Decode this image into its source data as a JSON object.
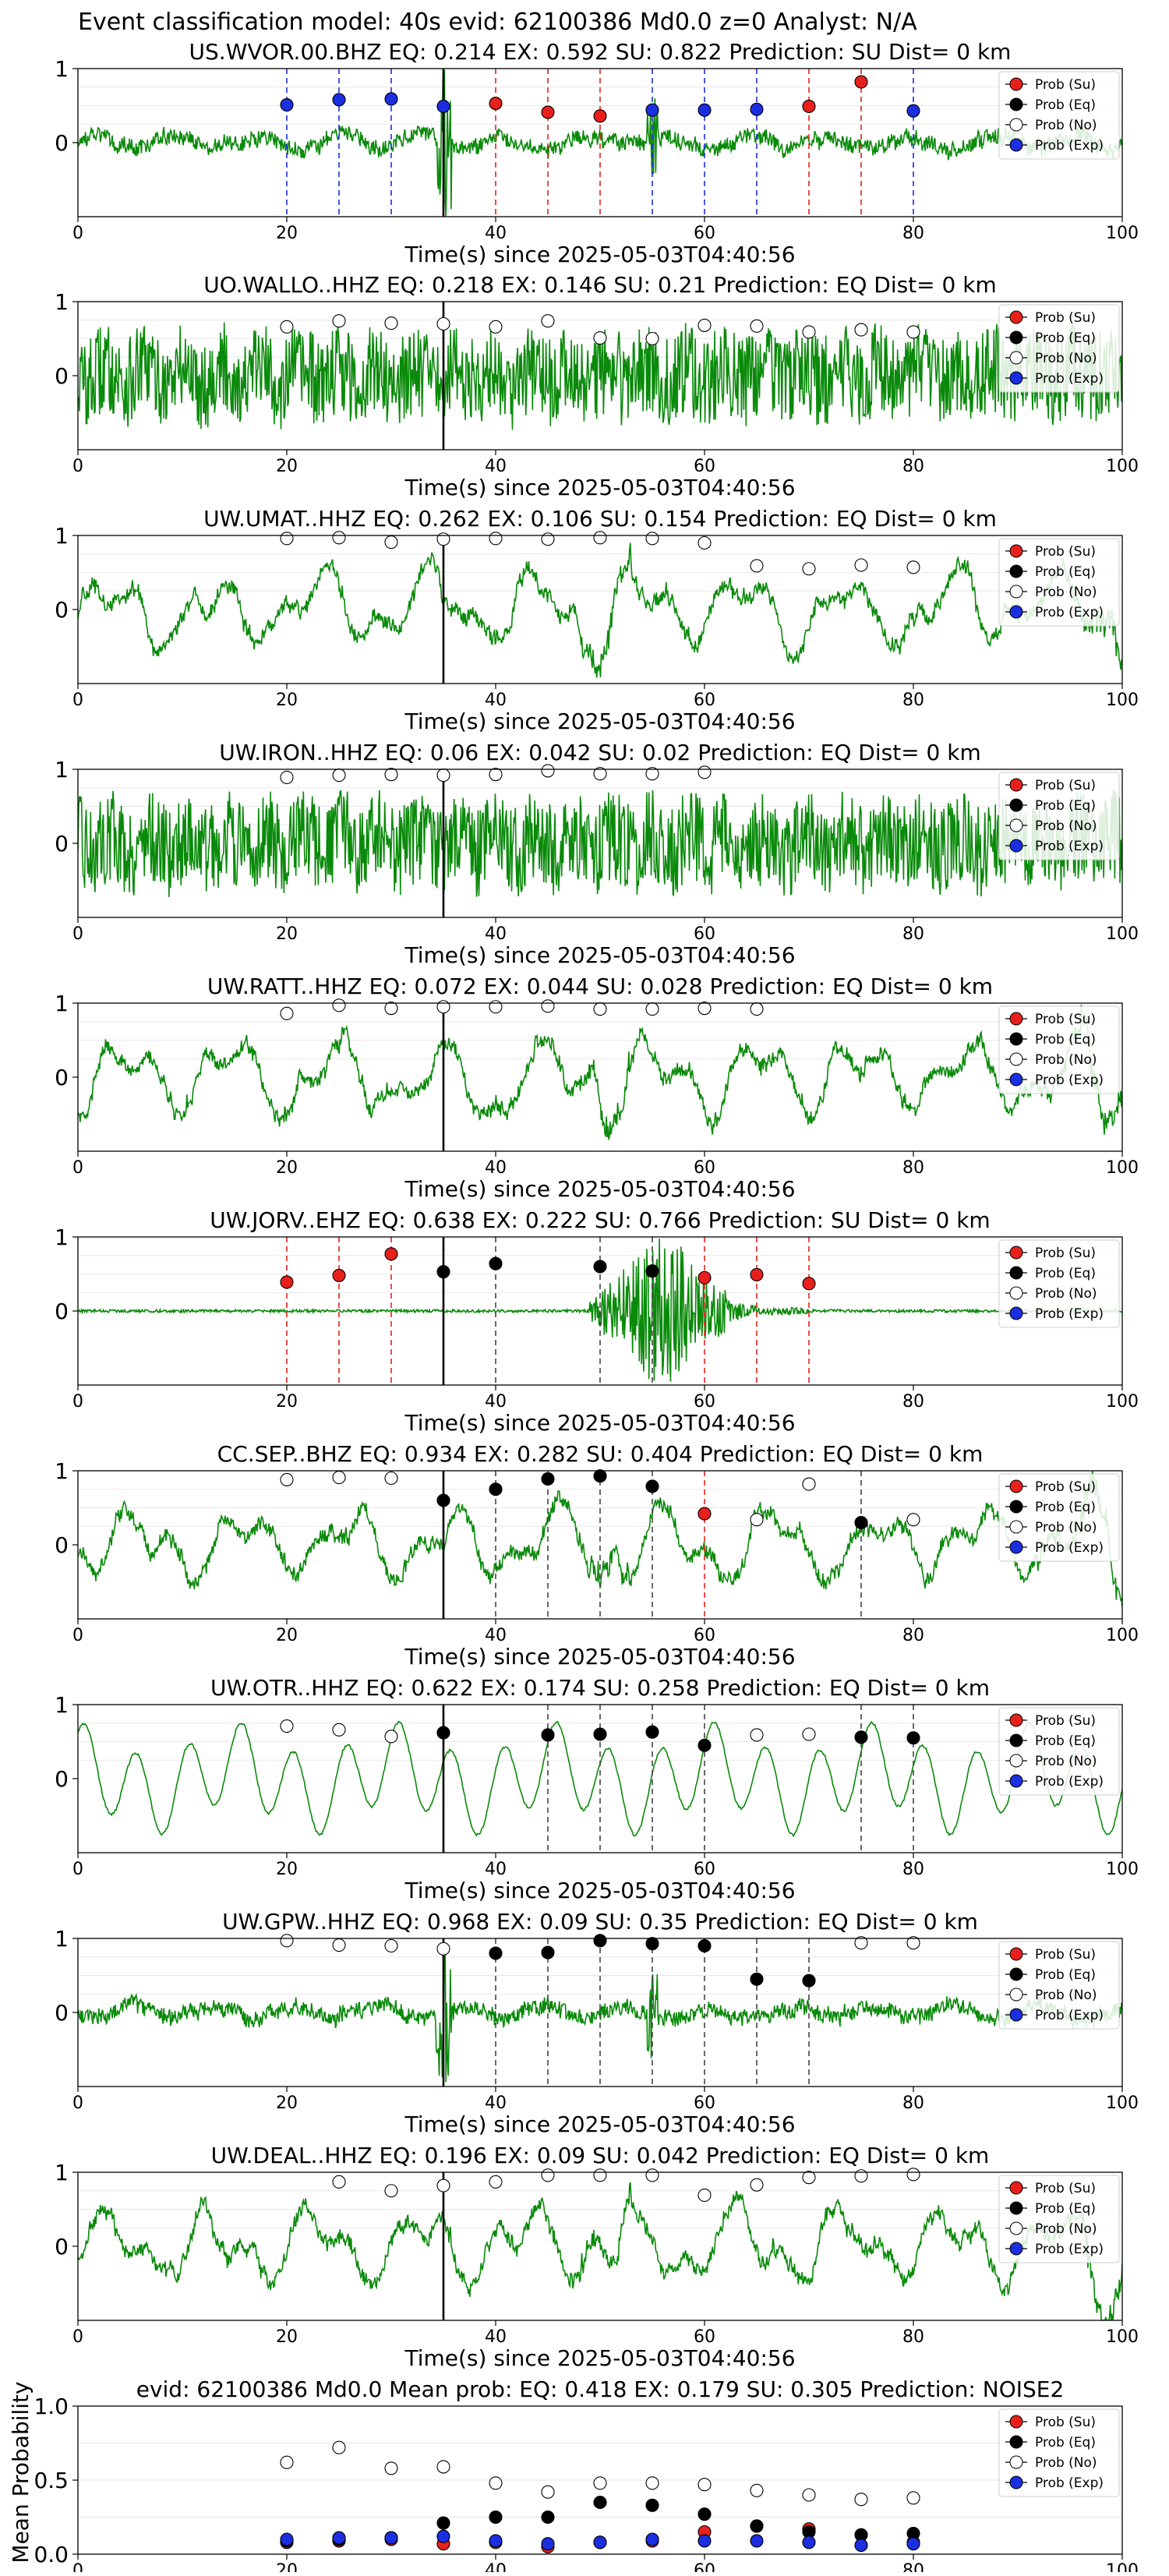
{
  "figure": {
    "title": "Event classification model: 40s evid: 62100386 Md0.0 z=0 Analyst: N/A"
  },
  "legend": {
    "entries": [
      "Prob (Su)",
      "Prob (Eq)",
      "Prob (No)",
      "Prob (Exp)"
    ],
    "placement": "top-right"
  },
  "colors": {
    "su": "#e8201c",
    "eq": "#000000",
    "no": "#ffffff",
    "exp": "#1b2ee0",
    "trace": "#0a8a0a",
    "line_su": "#e8201c",
    "line_eq": "#444444",
    "line_exp": "#1b2ee0"
  },
  "chart_data": [
    {
      "type": "line",
      "title": "US.WVOR.00.BHZ   EQ: 0.214  EX: 0.592  SU: 0.822   Prediction: SU    Dist= 0 km",
      "xlabel": "Time(s) since 2025-05-03T04:40:56",
      "ylabel": "",
      "xlim": [
        0,
        100
      ],
      "ylim": [
        -1,
        1
      ],
      "xticks": [
        "0",
        "20",
        "40",
        "60",
        "80",
        "100"
      ],
      "yticks": [
        "0",
        "1"
      ],
      "grid": true,
      "trace_style": "noise_spike",
      "event_time": 35,
      "markers": [
        {
          "x": 20,
          "y": 0.51,
          "cls": "exp"
        },
        {
          "x": 25,
          "y": 0.58,
          "cls": "exp"
        },
        {
          "x": 30,
          "y": 0.59,
          "cls": "exp"
        },
        {
          "x": 35,
          "y": 0.49,
          "cls": "exp"
        },
        {
          "x": 40,
          "y": 0.53,
          "cls": "su"
        },
        {
          "x": 45,
          "y": 0.41,
          "cls": "su"
        },
        {
          "x": 50,
          "y": 0.36,
          "cls": "su"
        },
        {
          "x": 55,
          "y": 0.44,
          "cls": "exp"
        },
        {
          "x": 60,
          "y": 0.44,
          "cls": "exp"
        },
        {
          "x": 65,
          "y": 0.45,
          "cls": "exp"
        },
        {
          "x": 70,
          "y": 0.49,
          "cls": "su"
        },
        {
          "x": 75,
          "y": 0.82,
          "cls": "su"
        },
        {
          "x": 80,
          "y": 0.43,
          "cls": "exp"
        }
      ]
    },
    {
      "type": "line",
      "title": "UO.WALLO..HHZ   EQ: 0.218  EX: 0.146  SU: 0.21   Prediction: EQ    Dist= 0 km",
      "xlabel": "Time(s) since 2025-05-03T04:40:56",
      "ylabel": "",
      "xlim": [
        0,
        100
      ],
      "ylim": [
        -1,
        1
      ],
      "xticks": [
        "0",
        "20",
        "40",
        "60",
        "80",
        "100"
      ],
      "yticks": [
        "0",
        "1"
      ],
      "grid": true,
      "trace_style": "dense_noise",
      "event_time": 35,
      "markers": [
        {
          "x": 20,
          "y": 0.66,
          "cls": "no"
        },
        {
          "x": 25,
          "y": 0.74,
          "cls": "no"
        },
        {
          "x": 30,
          "y": 0.71,
          "cls": "no"
        },
        {
          "x": 35,
          "y": 0.7,
          "cls": "no"
        },
        {
          "x": 40,
          "y": 0.66,
          "cls": "no"
        },
        {
          "x": 45,
          "y": 0.74,
          "cls": "no"
        },
        {
          "x": 50,
          "y": 0.51,
          "cls": "no"
        },
        {
          "x": 55,
          "y": 0.5,
          "cls": "no"
        },
        {
          "x": 60,
          "y": 0.68,
          "cls": "no"
        },
        {
          "x": 65,
          "y": 0.67,
          "cls": "no"
        },
        {
          "x": 70,
          "y": 0.59,
          "cls": "no"
        },
        {
          "x": 75,
          "y": 0.62,
          "cls": "no"
        },
        {
          "x": 80,
          "y": 0.59,
          "cls": "no"
        }
      ]
    },
    {
      "type": "line",
      "title": "UW.UMAT..HHZ   EQ: 0.262  EX: 0.106  SU: 0.154   Prediction: EQ    Dist= 0 km",
      "xlabel": "Time(s) since 2025-05-03T04:40:56",
      "ylabel": "",
      "xlim": [
        0,
        100
      ],
      "ylim": [
        -1,
        1
      ],
      "xticks": [
        "0",
        "20",
        "40",
        "60",
        "80",
        "100"
      ],
      "yticks": [
        "0",
        "1"
      ],
      "grid": true,
      "trace_style": "wavy",
      "event_time": 35,
      "markers": [
        {
          "x": 20,
          "y": 0.96,
          "cls": "no"
        },
        {
          "x": 25,
          "y": 0.97,
          "cls": "no"
        },
        {
          "x": 30,
          "y": 0.91,
          "cls": "no"
        },
        {
          "x": 35,
          "y": 0.95,
          "cls": "no"
        },
        {
          "x": 40,
          "y": 0.96,
          "cls": "no"
        },
        {
          "x": 45,
          "y": 0.95,
          "cls": "no"
        },
        {
          "x": 50,
          "y": 0.97,
          "cls": "no"
        },
        {
          "x": 55,
          "y": 0.96,
          "cls": "no"
        },
        {
          "x": 60,
          "y": 0.9,
          "cls": "no"
        },
        {
          "x": 65,
          "y": 0.59,
          "cls": "no"
        },
        {
          "x": 70,
          "y": 0.55,
          "cls": "no"
        },
        {
          "x": 75,
          "y": 0.6,
          "cls": "no"
        },
        {
          "x": 80,
          "y": 0.57,
          "cls": "no"
        }
      ]
    },
    {
      "type": "line",
      "title": "UW.IRON..HHZ   EQ: 0.06  EX: 0.042  SU: 0.02   Prediction: EQ    Dist= 0 km",
      "xlabel": "Time(s) since 2025-05-03T04:40:56",
      "ylabel": "",
      "xlim": [
        0,
        100
      ],
      "ylim": [
        -1,
        1
      ],
      "xticks": [
        "0",
        "20",
        "40",
        "60",
        "80",
        "100"
      ],
      "yticks": [
        "0",
        "1"
      ],
      "grid": true,
      "trace_style": "dense_noise",
      "event_time": 35,
      "markers": [
        {
          "x": 20,
          "y": 0.89,
          "cls": "no"
        },
        {
          "x": 25,
          "y": 0.92,
          "cls": "no"
        },
        {
          "x": 30,
          "y": 0.93,
          "cls": "no"
        },
        {
          "x": 35,
          "y": 0.92,
          "cls": "no"
        },
        {
          "x": 40,
          "y": 0.93,
          "cls": "no"
        },
        {
          "x": 45,
          "y": 0.98,
          "cls": "no"
        },
        {
          "x": 50,
          "y": 0.94,
          "cls": "no"
        },
        {
          "x": 55,
          "y": 0.94,
          "cls": "no"
        },
        {
          "x": 60,
          "y": 0.96,
          "cls": "no"
        }
      ]
    },
    {
      "type": "line",
      "title": "UW.RATT..HHZ   EQ: 0.072  EX: 0.044  SU: 0.028   Prediction: EQ    Dist= 0 km",
      "xlabel": "Time(s) since 2025-05-03T04:40:56",
      "ylabel": "",
      "xlim": [
        0,
        100
      ],
      "ylim": [
        -1,
        1
      ],
      "xticks": [
        "0",
        "20",
        "40",
        "60",
        "80",
        "100"
      ],
      "yticks": [
        "0",
        "1"
      ],
      "grid": true,
      "trace_style": "wavy",
      "event_time": 35,
      "markers": [
        {
          "x": 20,
          "y": 0.86,
          "cls": "no"
        },
        {
          "x": 25,
          "y": 0.97,
          "cls": "no"
        },
        {
          "x": 30,
          "y": 0.93,
          "cls": "no"
        },
        {
          "x": 35,
          "y": 0.95,
          "cls": "no"
        },
        {
          "x": 40,
          "y": 0.95,
          "cls": "no"
        },
        {
          "x": 45,
          "y": 0.96,
          "cls": "no"
        },
        {
          "x": 50,
          "y": 0.92,
          "cls": "no"
        },
        {
          "x": 55,
          "y": 0.92,
          "cls": "no"
        },
        {
          "x": 60,
          "y": 0.93,
          "cls": "no"
        },
        {
          "x": 65,
          "y": 0.92,
          "cls": "no"
        }
      ]
    },
    {
      "type": "line",
      "title": "UW.JORV..EHZ   EQ: 0.638  EX: 0.222  SU: 0.766   Prediction: SU    Dist= 0 km",
      "xlabel": "Time(s) since 2025-05-03T04:40:56",
      "ylabel": "",
      "xlim": [
        0,
        100
      ],
      "ylim": [
        -1,
        1
      ],
      "xticks": [
        "0",
        "20",
        "40",
        "60",
        "80",
        "100"
      ],
      "yticks": [
        "0",
        "1"
      ],
      "grid": true,
      "trace_style": "burst",
      "event_time": 35,
      "markers": [
        {
          "x": 20,
          "y": 0.39,
          "cls": "su"
        },
        {
          "x": 25,
          "y": 0.48,
          "cls": "su"
        },
        {
          "x": 30,
          "y": 0.77,
          "cls": "su"
        },
        {
          "x": 35,
          "y": 0.53,
          "cls": "eq"
        },
        {
          "x": 40,
          "y": 0.64,
          "cls": "eq"
        },
        {
          "x": 50,
          "y": 0.6,
          "cls": "eq"
        },
        {
          "x": 55,
          "y": 0.54,
          "cls": "eq"
        },
        {
          "x": 60,
          "y": 0.45,
          "cls": "su"
        },
        {
          "x": 65,
          "y": 0.49,
          "cls": "su"
        },
        {
          "x": 70,
          "y": 0.37,
          "cls": "su"
        }
      ]
    },
    {
      "type": "line",
      "title": "CC.SEP..BHZ   EQ: 0.934  EX: 0.282  SU: 0.404   Prediction: EQ    Dist= 0 km",
      "xlabel": "Time(s) since 2025-05-03T04:40:56",
      "ylabel": "",
      "xlim": [
        0,
        100
      ],
      "ylim": [
        -1,
        1
      ],
      "xticks": [
        "0",
        "20",
        "40",
        "60",
        "80",
        "100"
      ],
      "yticks": [
        "0",
        "1"
      ],
      "grid": true,
      "trace_style": "wavy",
      "event_time": 35,
      "markers": [
        {
          "x": 20,
          "y": 0.88,
          "cls": "no"
        },
        {
          "x": 25,
          "y": 0.91,
          "cls": "no"
        },
        {
          "x": 30,
          "y": 0.9,
          "cls": "no"
        },
        {
          "x": 35,
          "y": 0.6,
          "cls": "eq"
        },
        {
          "x": 40,
          "y": 0.75,
          "cls": "eq"
        },
        {
          "x": 45,
          "y": 0.89,
          "cls": "eq"
        },
        {
          "x": 50,
          "y": 0.93,
          "cls": "eq"
        },
        {
          "x": 55,
          "y": 0.79,
          "cls": "eq"
        },
        {
          "x": 60,
          "y": 0.42,
          "cls": "su"
        },
        {
          "x": 65,
          "y": 0.34,
          "cls": "no"
        },
        {
          "x": 70,
          "y": 0.82,
          "cls": "no"
        },
        {
          "x": 75,
          "y": 0.3,
          "cls": "eq"
        },
        {
          "x": 80,
          "y": 0.34,
          "cls": "no"
        }
      ]
    },
    {
      "type": "line",
      "title": "UW.OTR..HHZ   EQ: 0.622  EX: 0.174  SU: 0.258   Prediction: EQ    Dist= 0 km",
      "xlabel": "Time(s) since 2025-05-03T04:40:56",
      "ylabel": "",
      "xlim": [
        0,
        100
      ],
      "ylim": [
        -1,
        1
      ],
      "xticks": [
        "0",
        "20",
        "40",
        "60",
        "80",
        "100"
      ],
      "yticks": [
        "0",
        "1"
      ],
      "grid": true,
      "trace_style": "sine",
      "event_time": 35,
      "markers": [
        {
          "x": 20,
          "y": 0.71,
          "cls": "no"
        },
        {
          "x": 25,
          "y": 0.66,
          "cls": "no"
        },
        {
          "x": 30,
          "y": 0.57,
          "cls": "no"
        },
        {
          "x": 35,
          "y": 0.62,
          "cls": "eq"
        },
        {
          "x": 45,
          "y": 0.59,
          "cls": "eq"
        },
        {
          "x": 50,
          "y": 0.6,
          "cls": "eq"
        },
        {
          "x": 55,
          "y": 0.63,
          "cls": "eq"
        },
        {
          "x": 60,
          "y": 0.45,
          "cls": "eq"
        },
        {
          "x": 65,
          "y": 0.59,
          "cls": "no"
        },
        {
          "x": 70,
          "y": 0.6,
          "cls": "no"
        },
        {
          "x": 75,
          "y": 0.56,
          "cls": "eq"
        },
        {
          "x": 80,
          "y": 0.55,
          "cls": "eq"
        }
      ]
    },
    {
      "type": "line",
      "title": "UW.GPW..HHZ   EQ: 0.968  EX: 0.09  SU: 0.35   Prediction: EQ    Dist= 0 km",
      "xlabel": "Time(s) since 2025-05-03T04:40:56",
      "ylabel": "",
      "xlim": [
        0,
        100
      ],
      "ylim": [
        -1,
        1
      ],
      "xticks": [
        "0",
        "20",
        "40",
        "60",
        "80",
        "100"
      ],
      "yticks": [
        "0",
        "1"
      ],
      "grid": true,
      "trace_style": "noise_spike",
      "event_time": 35,
      "markers": [
        {
          "x": 20,
          "y": 0.97,
          "cls": "no"
        },
        {
          "x": 25,
          "y": 0.91,
          "cls": "no"
        },
        {
          "x": 30,
          "y": 0.9,
          "cls": "no"
        },
        {
          "x": 35,
          "y": 0.86,
          "cls": "no"
        },
        {
          "x": 40,
          "y": 0.8,
          "cls": "eq"
        },
        {
          "x": 45,
          "y": 0.81,
          "cls": "eq"
        },
        {
          "x": 50,
          "y": 0.97,
          "cls": "eq"
        },
        {
          "x": 55,
          "y": 0.93,
          "cls": "eq"
        },
        {
          "x": 60,
          "y": 0.9,
          "cls": "eq"
        },
        {
          "x": 65,
          "y": 0.45,
          "cls": "eq"
        },
        {
          "x": 70,
          "y": 0.43,
          "cls": "eq"
        },
        {
          "x": 75,
          "y": 0.94,
          "cls": "no"
        },
        {
          "x": 80,
          "y": 0.94,
          "cls": "no"
        }
      ]
    },
    {
      "type": "line",
      "title": "UW.DEAL..HHZ   EQ: 0.196  EX: 0.09  SU: 0.042   Prediction: EQ    Dist= 0 km",
      "xlabel": "Time(s) since 2025-05-03T04:40:56",
      "ylabel": "",
      "xlim": [
        0,
        100
      ],
      "ylim": [
        -1,
        1
      ],
      "xticks": [
        "0",
        "20",
        "40",
        "60",
        "80",
        "100"
      ],
      "yticks": [
        "0",
        "1"
      ],
      "grid": true,
      "trace_style": "wavy",
      "event_time": 35,
      "markers": [
        {
          "x": 25,
          "y": 0.87,
          "cls": "no"
        },
        {
          "x": 30,
          "y": 0.75,
          "cls": "no"
        },
        {
          "x": 35,
          "y": 0.82,
          "cls": "no"
        },
        {
          "x": 40,
          "y": 0.87,
          "cls": "no"
        },
        {
          "x": 45,
          "y": 0.96,
          "cls": "no"
        },
        {
          "x": 50,
          "y": 0.96,
          "cls": "no"
        },
        {
          "x": 55,
          "y": 0.96,
          "cls": "no"
        },
        {
          "x": 60,
          "y": 0.69,
          "cls": "no"
        },
        {
          "x": 65,
          "y": 0.83,
          "cls": "no"
        },
        {
          "x": 70,
          "y": 0.93,
          "cls": "no"
        },
        {
          "x": 75,
          "y": 0.95,
          "cls": "no"
        },
        {
          "x": 80,
          "y": 0.97,
          "cls": "no"
        }
      ]
    },
    {
      "type": "scatter",
      "title": "evid: 62100386  Md0.0   Mean prob:   EQ: 0.418  EX: 0.179  SU: 0.305   Prediction: NOISE2",
      "xlabel": "",
      "ylabel": "Mean Probability",
      "xlim": [
        0,
        100
      ],
      "ylim": [
        0,
        1
      ],
      "xticks": [
        "0",
        "20",
        "40",
        "60",
        "80",
        "100"
      ],
      "yticks": [
        "0.0",
        "0.5",
        "1.0"
      ],
      "grid": true,
      "series": [
        {
          "name": "Prob (Su)",
          "cls": "su",
          "x": [
            20,
            25,
            30,
            35,
            40,
            45,
            50,
            55,
            60,
            65,
            70,
            75,
            80
          ],
          "y": [
            0.08,
            0.09,
            0.1,
            0.07,
            0.08,
            0.05,
            0.08,
            0.09,
            0.15,
            0.19,
            0.17,
            0.13,
            0.08
          ]
        },
        {
          "name": "Prob (Eq)",
          "cls": "eq",
          "x": [
            20,
            25,
            30,
            35,
            40,
            45,
            50,
            55,
            60,
            65,
            70,
            75,
            80
          ],
          "y": [
            0.09,
            0.1,
            0.11,
            0.21,
            0.25,
            0.25,
            0.35,
            0.33,
            0.27,
            0.19,
            0.15,
            0.13,
            0.14
          ]
        },
        {
          "name": "Prob (No)",
          "cls": "no",
          "x": [
            20,
            25,
            30,
            35,
            40,
            45,
            50,
            55,
            60,
            65,
            70,
            75,
            80
          ],
          "y": [
            0.62,
            0.72,
            0.58,
            0.59,
            0.48,
            0.42,
            0.48,
            0.48,
            0.47,
            0.43,
            0.4,
            0.37,
            0.38
          ]
        },
        {
          "name": "Prob (Exp)",
          "cls": "exp",
          "x": [
            20,
            25,
            30,
            35,
            40,
            45,
            50,
            55,
            60,
            65,
            70,
            75,
            80
          ],
          "y": [
            0.1,
            0.11,
            0.11,
            0.12,
            0.09,
            0.07,
            0.08,
            0.1,
            0.09,
            0.09,
            0.08,
            0.06,
            0.07
          ]
        }
      ]
    }
  ]
}
